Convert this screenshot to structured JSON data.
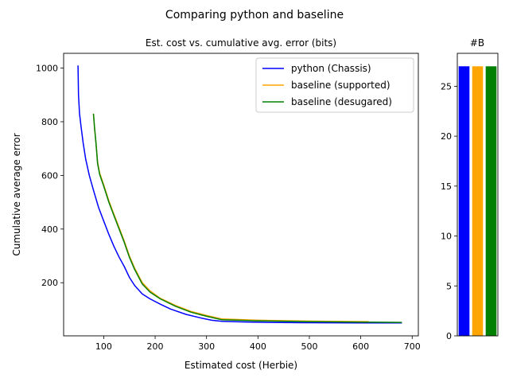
{
  "figure_title": "Comparing python and baseline",
  "chart_data": [
    {
      "type": "line",
      "title": "Est. cost vs. cumulative avg. error (bits)",
      "xlabel": "Estimated cost (Herbie)",
      "ylabel": "Cumulative average error",
      "xlim": [
        22,
        712
      ],
      "ylim": [
        2,
        1055
      ],
      "xticks": [
        100,
        200,
        300,
        400,
        500,
        600,
        700
      ],
      "yticks": [
        200,
        400,
        600,
        800,
        1000
      ],
      "grid": false,
      "legend": "top-right",
      "series": [
        {
          "name": "python (Chassis)",
          "color": "#0000ff",
          "x": [
            50,
            51,
            53,
            56,
            60,
            65,
            72,
            80,
            90,
            100,
            110,
            120,
            130,
            140,
            150,
            160,
            175,
            190,
            210,
            230,
            260,
            290,
            310,
            330,
            370,
            420,
            500,
            600,
            680
          ],
          "y": [
            1010,
            900,
            830,
            780,
            720,
            660,
            600,
            545,
            480,
            430,
            380,
            335,
            295,
            260,
            220,
            190,
            158,
            140,
            120,
            102,
            82,
            68,
            60,
            56,
            54,
            52,
            51,
            50,
            50
          ]
        },
        {
          "name": "baseline (supported)",
          "color": "#ffa500",
          "x": [
            80,
            82,
            85,
            88,
            92,
            100,
            110,
            120,
            130,
            140,
            150,
            160,
            175,
            190,
            210,
            240,
            270,
            300,
            330,
            400,
            500,
            600,
            615
          ],
          "y": [
            830,
            780,
            720,
            650,
            610,
            565,
            505,
            455,
            405,
            355,
            300,
            255,
            200,
            170,
            142,
            115,
            93,
            78,
            65,
            60,
            57,
            55,
            55
          ]
        },
        {
          "name": "baseline (desugared)",
          "color": "#008000",
          "x": [
            80,
            82,
            85,
            88,
            92,
            100,
            110,
            120,
            130,
            140,
            150,
            160,
            175,
            190,
            210,
            240,
            270,
            300,
            330,
            400,
            500,
            600,
            680
          ],
          "y": [
            830,
            780,
            720,
            645,
            605,
            560,
            500,
            450,
            400,
            350,
            295,
            250,
            195,
            165,
            140,
            112,
            90,
            75,
            62,
            58,
            55,
            53,
            52
          ]
        }
      ]
    },
    {
      "type": "bar",
      "title": "#B",
      "ylim": [
        0,
        28.3
      ],
      "yticks": [
        0,
        5,
        10,
        15,
        20,
        25
      ],
      "values": [
        27,
        27,
        27
      ],
      "colors": [
        "#0000ff",
        "#ffa500",
        "#008000"
      ]
    }
  ]
}
